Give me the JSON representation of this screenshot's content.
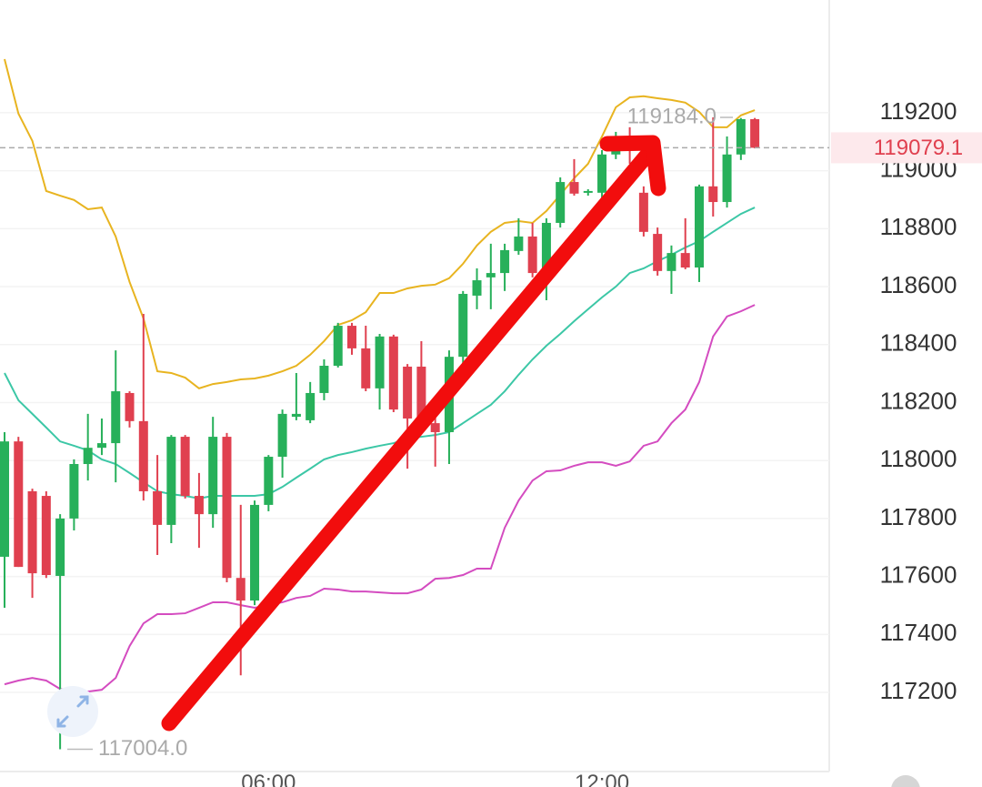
{
  "chart_data": {
    "type": "candlestick",
    "categories": [
      null,
      null,
      null,
      null,
      null,
      null,
      null,
      null,
      null,
      null,
      null,
      null,
      null,
      null,
      null,
      null,
      null,
      null,
      null,
      "06:00",
      null,
      null,
      null,
      null,
      null,
      null,
      null,
      null,
      null,
      null,
      null,
      null,
      null,
      null,
      null,
      null,
      null,
      null,
      null,
      null,
      null,
      null,
      null,
      "12:00",
      null,
      null,
      null,
      null,
      null,
      null,
      null,
      null,
      null,
      null,
      null
    ],
    "open": [
      117668,
      118066,
      117894,
      117878,
      117602,
      117800,
      117988,
      118044,
      118060,
      118233,
      118136,
      117894,
      117778,
      118082,
      117878,
      117815,
      118082,
      117595,
      117517,
      117847,
      118013,
      118151,
      118139,
      118233,
      118327,
      118465,
      118387,
      118249,
      118428,
      118324,
      118324,
      118129,
      118098,
      118358,
      118569,
      118632,
      118647,
      118723,
      118773,
      118647,
      118820,
      118961,
      118924,
      118924,
      119056,
      119118,
      118924,
      118782,
      118654,
      118716,
      118666,
      118946,
      118892,
      119056,
      119178
    ],
    "high": [
      118098,
      118082,
      117903,
      117894,
      117815,
      118004,
      118161,
      118145,
      118380,
      118239,
      118506,
      118019,
      118088,
      118088,
      117957,
      118151,
      118095,
      117847,
      117862,
      118019,
      118176,
      118302,
      118271,
      118349,
      118475,
      118475,
      118465,
      118437,
      118434,
      118333,
      118412,
      118161,
      118380,
      118585,
      118663,
      118748,
      118748,
      118836,
      118820,
      118836,
      118977,
      119040,
      118936,
      119071,
      119134,
      119150,
      118946,
      118804,
      118742,
      118836,
      118952,
      119184,
      119118,
      119182,
      119182
    ],
    "low": [
      117492,
      117633,
      117526,
      117595,
      117004,
      117759,
      117931,
      118019,
      117925,
      118114,
      117862,
      117674,
      117715,
      117869,
      117699,
      117768,
      117580,
      117259,
      117501,
      117825,
      117941,
      118139,
      118129,
      118208,
      118321,
      118365,
      118239,
      118176,
      118167,
      117972,
      118098,
      117979,
      117988,
      118333,
      118522,
      118522,
      118585,
      118710,
      118632,
      118553,
      118804,
      118914,
      118914,
      118905,
      119040,
      119024,
      118773,
      118638,
      118575,
      118660,
      118616,
      118842,
      118873,
      119037,
      119077
    ],
    "close": [
      118066,
      117633,
      117611,
      117605,
      117800,
      117988,
      118044,
      118060,
      118239,
      118136,
      117894,
      117778,
      118082,
      117878,
      117815,
      118082,
      117595,
      117517,
      117847,
      118013,
      118161,
      118161,
      118233,
      118327,
      118465,
      118387,
      118249,
      118428,
      118176,
      118145,
      118114,
      118098,
      118358,
      118575,
      118622,
      118647,
      118726,
      118773,
      118647,
      118820,
      118961,
      118921,
      118930,
      119056,
      119118,
      119071,
      118789,
      118654,
      118716,
      118666,
      118946,
      118892,
      119056,
      119178,
      119079.1
    ],
    "up_color": "#27b05a",
    "down_color": "#e0404f",
    "overlays": [
      {
        "color": "#e8b420",
        "values": [
          119385,
          119197,
          119103,
          118930,
          118914,
          118899,
          118867,
          118873,
          118773,
          118616,
          118490,
          118308,
          118302,
          118286,
          118249,
          118264,
          118271,
          118280,
          118283,
          118293,
          118308,
          118327,
          118365,
          118412,
          118468,
          118484,
          118512,
          118578,
          118578,
          118594,
          118603,
          118607,
          118629,
          118679,
          118742,
          118789,
          118820,
          118826,
          118820,
          118861,
          118917,
          118974,
          119024,
          119118,
          119219,
          119253,
          119257,
          119250,
          119244,
          119235,
          119203,
          119150,
          119150,
          119191,
          119209
        ]
      },
      {
        "color": "#3cc7a6",
        "values": [
          118302,
          118208,
          118161,
          118114,
          118066,
          118051,
          118035,
          118004,
          117988,
          117957,
          117925,
          117894,
          117884,
          117878,
          117869,
          117878,
          117878,
          117878,
          117878,
          117884,
          117909,
          117941,
          117972,
          118004,
          118019,
          118029,
          118041,
          118051,
          118060,
          118076,
          118082,
          118088,
          118098,
          118129,
          118161,
          118192,
          118239,
          118296,
          118349,
          118396,
          118437,
          118481,
          118522,
          118563,
          118600,
          118647,
          118663,
          118688,
          118710,
          118735,
          118757,
          118789,
          118820,
          118851,
          118873
        ]
      },
      {
        "color": "#d44cc0",
        "values": [
          117228,
          117241,
          117250,
          117241,
          117212,
          117209,
          117203,
          117209,
          117250,
          117360,
          117438,
          117470,
          117470,
          117473,
          117492,
          117511,
          117511,
          117501,
          117492,
          117501,
          117511,
          117526,
          117533,
          117558,
          117555,
          117548,
          117548,
          117545,
          117542,
          117542,
          117555,
          117592,
          117595,
          117605,
          117627,
          117627,
          117768,
          117862,
          117931,
          117963,
          117966,
          117982,
          117994,
          117994,
          117982,
          117997,
          118051,
          118066,
          118129,
          118176,
          118271,
          118428,
          118497,
          118515,
          118537
        ]
      }
    ],
    "ylim": [
      116927,
      119589
    ],
    "yticks": [
      117200,
      117400,
      117600,
      117800,
      118000,
      118200,
      118400,
      118600,
      118800,
      119000,
      119200
    ],
    "grid": true,
    "last_price": 119079.1,
    "max_marker": {
      "value": 119184,
      "label": "119184.0"
    },
    "min_marker": {
      "value": 117004,
      "label": "117004.0"
    }
  }
}
